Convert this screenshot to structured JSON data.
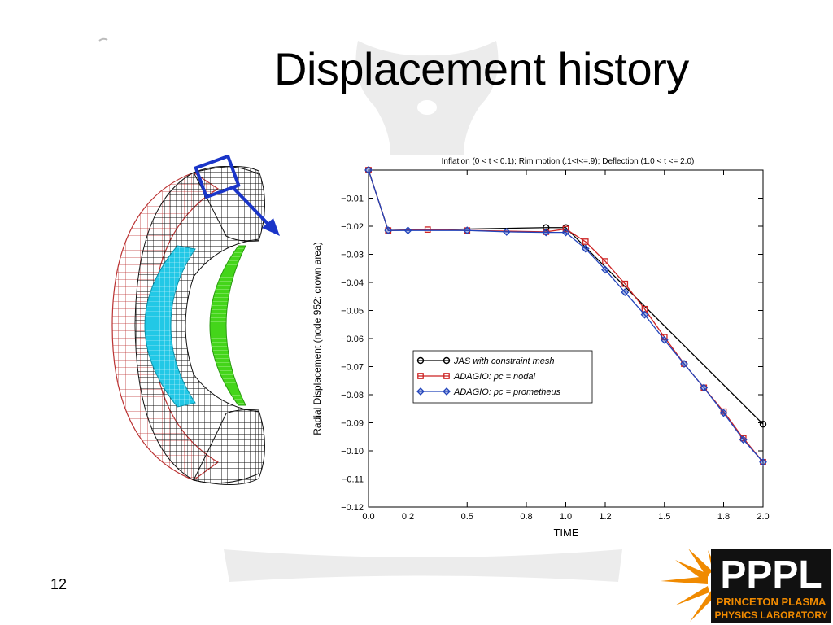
{
  "slide": {
    "title": "Displacement history",
    "page_number": "12"
  },
  "logo": {
    "acronym": "PPPL",
    "line1": "PRINCETON PLASMA",
    "line2": "PHYSICS LABORATORY"
  },
  "colors": {
    "series_jas": "#000000",
    "series_nodal": "#cc2222",
    "series_prometheus": "#2244bb",
    "highlight_box": "#1a35c8",
    "logo_orange": "#f08a00",
    "tire_cyan": "#22c8e6",
    "tire_green": "#44d51a",
    "tire_red": "#c23b3b"
  },
  "chart_data": {
    "type": "line",
    "title": "Inflation (0 < t < 0.1); Rim motion (.1<t<=.9); Deflection (1.0 < t <= 2.0)",
    "xlabel": "TIME",
    "ylabel": "Radial Displacement (node 952: crown area)",
    "xlim": [
      0.0,
      2.0
    ],
    "ylim": [
      -0.12,
      0.0
    ],
    "xticks": [
      0.0,
      0.2,
      0.5,
      0.8,
      1.0,
      1.2,
      1.5,
      1.8,
      2.0
    ],
    "xtick_labels": [
      "0.0",
      "0.2",
      "0.5",
      "0.8",
      "1.0",
      "1.2",
      "1.5",
      "1.8",
      "2.0"
    ],
    "yticks": [
      -0.01,
      -0.02,
      -0.03,
      -0.04,
      -0.05,
      -0.06,
      -0.07,
      -0.08,
      -0.09,
      -0.1,
      -0.11,
      -0.12
    ],
    "ytick_labels": [
      "−0.01",
      "−0.02",
      "−0.03",
      "−0.04",
      "−0.05",
      "−0.06",
      "−0.07",
      "−0.08",
      "−0.09",
      "−0.10",
      "−0.11",
      "−0.12"
    ],
    "legend_position": "center-left",
    "grid": false,
    "series": [
      {
        "name": "JAS with constraint mesh",
        "marker": "circle",
        "x": [
          0.0,
          0.1,
          0.9,
          1.0,
          2.0
        ],
        "y": [
          0.0,
          -0.0215,
          -0.0205,
          -0.0205,
          -0.0905
        ]
      },
      {
        "name": "ADAGIO: pc = nodal",
        "marker": "square",
        "x": [
          0.0,
          0.1,
          0.3,
          0.5,
          0.9,
          1.0,
          1.1,
          1.2,
          1.3,
          1.4,
          1.5,
          1.6,
          1.7,
          1.8,
          1.9,
          2.0
        ],
        "y": [
          0.0,
          -0.0215,
          -0.0212,
          -0.0215,
          -0.022,
          -0.021,
          -0.0255,
          -0.0325,
          -0.0405,
          -0.0495,
          -0.0595,
          -0.069,
          -0.0775,
          -0.086,
          -0.0955,
          -0.104
        ]
      },
      {
        "name": "ADAGIO: pc = prometheus",
        "marker": "diamond",
        "x": [
          0.0,
          0.1,
          0.2,
          0.5,
          0.7,
          0.9,
          1.0,
          1.1,
          1.2,
          1.3,
          1.4,
          1.5,
          1.6,
          1.7,
          1.8,
          1.9,
          2.0
        ],
        "y": [
          0.0,
          -0.0215,
          -0.0215,
          -0.0215,
          -0.022,
          -0.0222,
          -0.0222,
          -0.028,
          -0.0355,
          -0.0435,
          -0.0515,
          -0.0605,
          -0.069,
          -0.0775,
          -0.0865,
          -0.096,
          -0.104
        ]
      }
    ]
  }
}
